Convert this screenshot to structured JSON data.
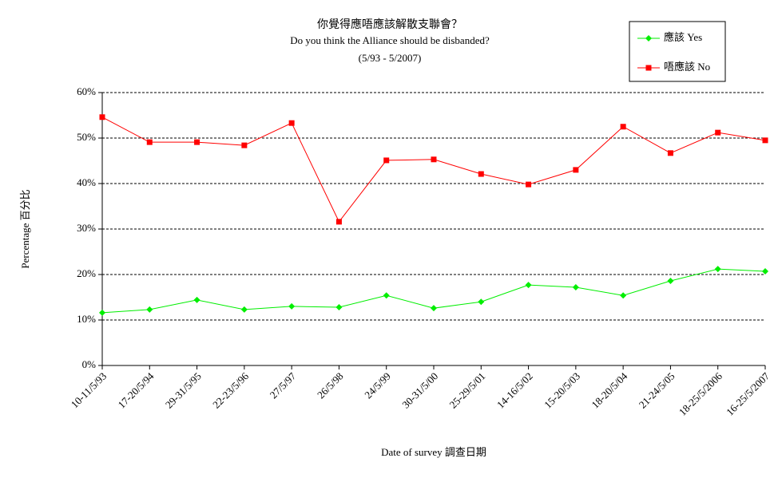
{
  "chart_data": {
    "type": "line",
    "title": "你覺得應唔應該解散支聯會？",
    "subtitle": "Do you think the Alliance should be disbanded?",
    "period": "(5/93 - 5/2007)",
    "x_label": "Date of survey  調查日期",
    "y_label": "Percentage  百分比",
    "categories": [
      "10-11/5/93",
      "17-20/5/94",
      "29-31/5/95",
      "22-23/5/96",
      "27/5/97",
      "26/5/98",
      "24/5/99",
      "30-31/5/00",
      "25-29/5/01",
      "14-16/5/02",
      "15-20/5/03",
      "18-20/5/04",
      "21-24/5/05",
      "18-25/5/2006",
      "16-25/5/2007"
    ],
    "series": [
      {
        "name": "應該 Yes",
        "color": "#00ee00",
        "marker": "diamond",
        "values": [
          11.6,
          12.3,
          14.4,
          12.3,
          13.0,
          12.8,
          15.4,
          12.6,
          14.0,
          17.7,
          17.2,
          15.4,
          18.6,
          21.2,
          20.7
        ]
      },
      {
        "name": "唔應該 No",
        "color": "#ff0000",
        "marker": "square",
        "values": [
          54.6,
          49.1,
          49.1,
          48.4,
          53.3,
          31.6,
          45.1,
          45.3,
          42.1,
          39.8,
          43.0,
          52.5,
          46.7,
          51.2,
          49.5
        ]
      }
    ],
    "ylim": [
      0,
      60
    ],
    "yticks": [
      {
        "value": 0,
        "label": "0%"
      },
      {
        "value": 10,
        "label": "10%"
      },
      {
        "value": 20,
        "label": "20%"
      },
      {
        "value": 30,
        "label": "30%"
      },
      {
        "value": 40,
        "label": "40%"
      },
      {
        "value": 50,
        "label": "50%"
      },
      {
        "value": 60,
        "label": "60%"
      }
    ],
    "grid": true,
    "legend": "top-right"
  }
}
